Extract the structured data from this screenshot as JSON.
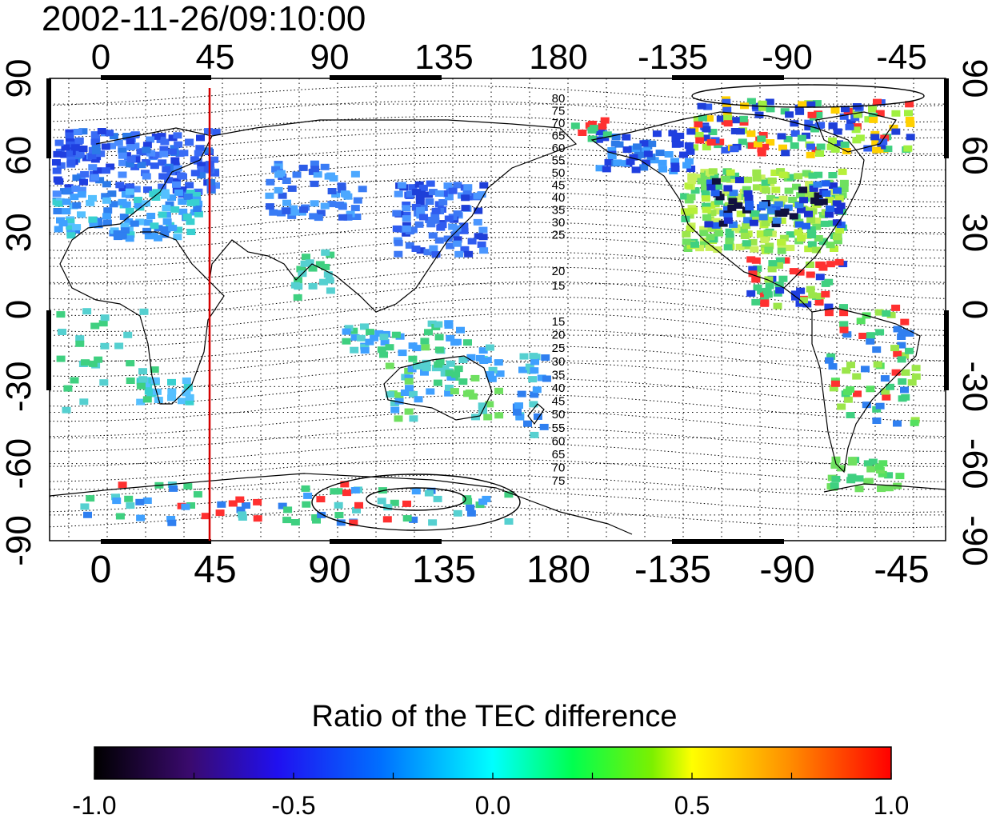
{
  "title": "2002-11-26/09:10:00",
  "top_lon_labels": [
    "0",
    "45",
    "90",
    "135",
    "180",
    "-135",
    "-90",
    "-45"
  ],
  "bottom_lon_labels": [
    "0",
    "45",
    "90",
    "135",
    "180",
    "-135",
    "-90",
    "-45"
  ],
  "left_lat_labels": [
    "90",
    "60",
    "30",
    "0",
    "-30",
    "-60",
    "-90"
  ],
  "right_lat_labels": [
    "90",
    "60",
    "30",
    "0",
    "-30",
    "-60",
    "-90"
  ],
  "contour_labels_north": [
    "80",
    "75",
    "70",
    "65",
    "60",
    "55",
    "50",
    "45",
    "40",
    "35",
    "30",
    "25",
    "20",
    "15"
  ],
  "contour_labels_south": [
    "15",
    "20",
    "25",
    "30",
    "35",
    "40",
    "45",
    "50",
    "55",
    "60",
    "65",
    "70",
    "75"
  ],
  "terminator_longitude": 45,
  "colorbar": {
    "title": "Ratio of the TEC difference",
    "tick_labels": [
      "-1.0",
      "-0.5",
      "0.0",
      "0.5",
      "1.0"
    ],
    "min": -1.0,
    "max": 1.0,
    "colors": [
      "#000000",
      "#3a0a6e",
      "#2010f0",
      "#0070ff",
      "#00ffff",
      "#00ff50",
      "#7cf000",
      "#ffff00",
      "#ff9000",
      "#ff0000"
    ]
  },
  "colors": {
    "terminator": "#d40000",
    "frame": "#000000"
  }
}
